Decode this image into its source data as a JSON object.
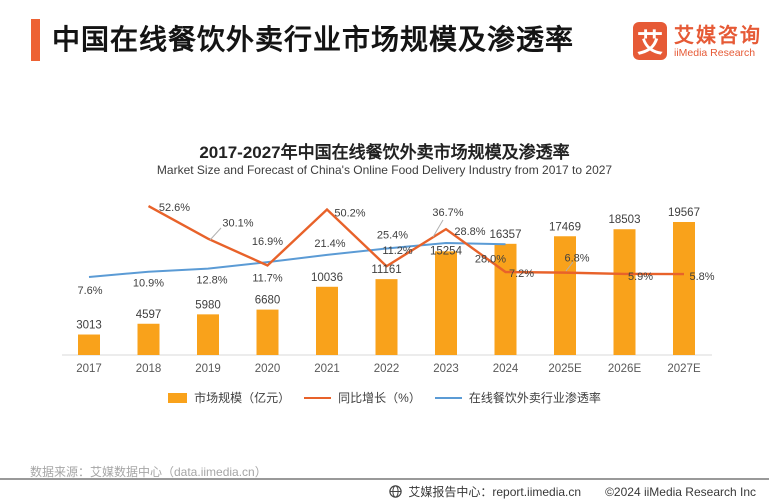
{
  "header": {
    "title": "中国在线餐饮外卖行业市场规模及渗透率",
    "logo": {
      "mark": "艾",
      "name_cn": "艾媒咨询",
      "name_en": "iiMedia Research"
    }
  },
  "chart_data": {
    "type": "bar+line",
    "title": "2017-2027年中国在线餐饮外卖市场规模及渗透率",
    "subtitle": "Market Size and Forecast of China's Online Food Delivery Industry from 2017 to 2027",
    "categories": [
      "2017",
      "2018",
      "2019",
      "2020",
      "2021",
      "2022",
      "2023",
      "2024",
      "2025E",
      "2026E",
      "2027E"
    ],
    "series": [
      {
        "name": "市场规模（亿元）",
        "type": "bar",
        "color": "#F9A21B",
        "values": [
          3013,
          4597,
          5980,
          6680,
          10036,
          11161,
          15254,
          16357,
          17469,
          18503,
          19567
        ]
      },
      {
        "name": "同比增长（%）",
        "type": "line",
        "color": "#E8622A",
        "unit": "%",
        "values": [
          null,
          52.6,
          30.1,
          11.7,
          50.2,
          11.2,
          36.7,
          7.2,
          6.8,
          5.9,
          5.8
        ]
      },
      {
        "name": "在线餐饮外卖行业渗透率",
        "type": "line",
        "color": "#5B9BD5",
        "unit": "%",
        "values": [
          7.6,
          10.9,
          12.8,
          16.9,
          21.4,
          25.4,
          28.8,
          28.0,
          null,
          null,
          null
        ]
      }
    ],
    "ylim_bar": [
      0,
      20000
    ],
    "ylim_growth_pct": [
      0,
      60
    ],
    "ylim_penetration_pct": [
      0,
      30
    ],
    "grid": false,
    "legend_position": "bottom"
  },
  "source": "数据来源：艾媒数据中心（data.iimedia.cn）",
  "footer": {
    "report_center": "艾媒报告中心：report.iimedia.cn",
    "copyright": "©2024  iiMedia Research  Inc"
  }
}
